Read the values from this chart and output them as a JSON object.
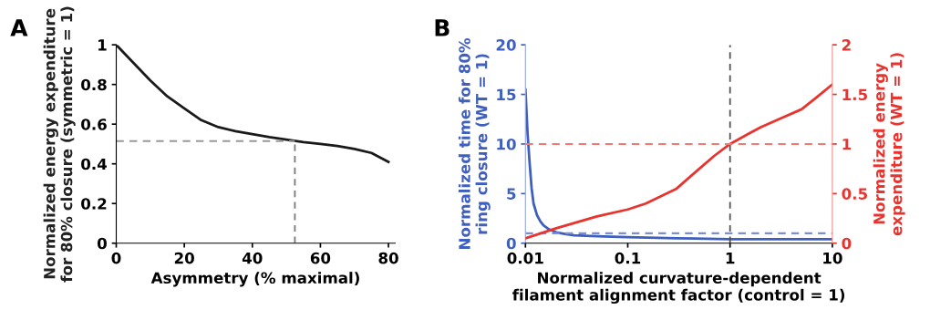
{
  "chart_data": [
    {
      "type": "line",
      "title": "A",
      "xlabel": "Asymmetry (% maximal)",
      "ylabel": "Normalized energy expenditure\nfor 80% closure (symmetric = 1)",
      "x": [
        0,
        5,
        10,
        15,
        20,
        25,
        30,
        35,
        40,
        45,
        50,
        55,
        60,
        65,
        70,
        75,
        80
      ],
      "series": [
        {
          "color": "#1a1a1a",
          "values": [
            1.0,
            0.91,
            0.82,
            0.74,
            0.68,
            0.62,
            0.585,
            0.565,
            0.55,
            0.535,
            0.522,
            0.51,
            0.5,
            0.49,
            0.475,
            0.455,
            0.41
          ]
        }
      ],
      "xlim": [
        0,
        82
      ],
      "xticks": [
        0,
        20,
        40,
        60,
        80
      ],
      "ylim": [
        0,
        1
      ],
      "yticks": [
        0,
        0.2,
        0.4,
        0.6,
        0.8,
        1
      ],
      "ref_lines": [
        {
          "axis": "y",
          "value": 0.515,
          "color": "#999999",
          "line_style": "dashed"
        },
        {
          "axis": "x",
          "value": 52.5,
          "color": "#777777",
          "line_style": "dashed"
        }
      ],
      "grid": false,
      "legend": false,
      "log": false
    },
    {
      "type": "line",
      "title": "B",
      "xlabel": "Normalized curvature-dependent\nfilament alignment factor (control = 1)",
      "ylabel": "Normalized time for 80%\nring closure (WT = 1)",
      "y2label": "Normalized energy\nexpenditure (WT = 1)",
      "series": [
        {
          "color": "#3f5fbf",
          "x": [
            0.01,
            0.0105,
            0.011,
            0.0115,
            0.012,
            0.013,
            0.014,
            0.015,
            0.017,
            0.02,
            0.025,
            0.03,
            0.05,
            0.1,
            0.3,
            1,
            3,
            10
          ],
          "values": [
            15.5,
            11,
            8,
            5.5,
            4,
            2.8,
            2.2,
            1.8,
            1.4,
            1.1,
            0.9,
            0.8,
            0.7,
            0.6,
            0.5,
            0.4,
            0.4,
            0.4
          ]
        },
        {
          "color": "#e8332e",
          "axis": "y2",
          "x": [
            0.01,
            0.02,
            0.05,
            0.1,
            0.15,
            0.3,
            0.5,
            0.7,
            1,
            1.5,
            2,
            3,
            5,
            7,
            10
          ],
          "values": [
            0.05,
            0.15,
            0.27,
            0.34,
            0.4,
            0.55,
            0.75,
            0.88,
            1.0,
            1.1,
            1.17,
            1.25,
            1.35,
            1.47,
            1.6
          ]
        }
      ],
      "xlim": [
        0.01,
        10
      ],
      "xticks": [
        0.01,
        0.1,
        1,
        10
      ],
      "ylim": [
        0,
        20
      ],
      "yticks": [
        0,
        5,
        10,
        15,
        20
      ],
      "y2lim": [
        0,
        2
      ],
      "y2ticks": [
        0,
        0.5,
        1,
        1.5,
        2
      ],
      "ref_lines": [
        {
          "axis": "y",
          "value": 1,
          "color": "#7b8fd6",
          "line_style": "dashed"
        },
        {
          "axis": "y2",
          "value": 1,
          "color": "#f07a72",
          "line_style": "dashed"
        },
        {
          "axis": "x",
          "value": 1,
          "color": "#555555",
          "line_style": "dashed"
        }
      ],
      "grid": false,
      "legend": false,
      "log": "x"
    }
  ]
}
